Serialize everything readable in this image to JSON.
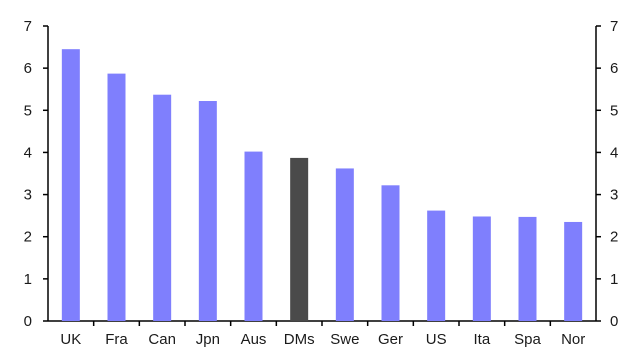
{
  "chart_data": {
    "type": "bar",
    "title": "",
    "xlabel": "",
    "ylabel": "",
    "categories": [
      "UK",
      "Fra",
      "Can",
      "Jpn",
      "Aus",
      "DMs",
      "Swe",
      "Ger",
      "US",
      "Ita",
      "Spa",
      "Nor"
    ],
    "values": [
      6.45,
      5.87,
      5.37,
      5.22,
      4.02,
      3.87,
      3.62,
      3.22,
      2.62,
      2.48,
      2.47,
      2.35
    ],
    "ylim": [
      0,
      7
    ],
    "yticks": [
      0,
      1,
      2,
      3,
      4,
      5,
      6,
      7
    ],
    "y_axis_sides": [
      "left",
      "right"
    ],
    "grid": false,
    "colors": {
      "default_bar": "#7f7ffd",
      "highlight_bar": "#4a4a4a",
      "axis": "#000000"
    },
    "highlight_category": "DMs"
  }
}
